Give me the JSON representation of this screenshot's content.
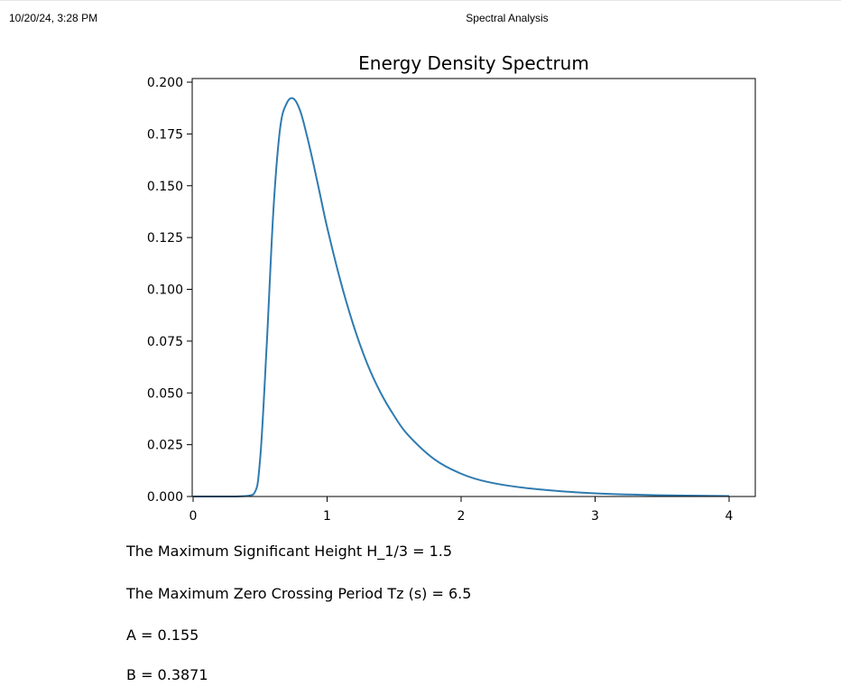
{
  "header": {
    "datetime": "10/20/24, 3:28 PM",
    "page_title": "Spectral Analysis"
  },
  "chart_data": {
    "type": "line",
    "title": "Energy Density Spectrum",
    "xlabel": "",
    "ylabel": "",
    "xlim": [
      0,
      4
    ],
    "ylim": [
      0,
      0.2
    ],
    "x_ticks": [
      "0",
      "1",
      "2",
      "3",
      "4"
    ],
    "y_ticks": [
      "0.000",
      "0.025",
      "0.050",
      "0.075",
      "0.100",
      "0.125",
      "0.150",
      "0.175",
      "0.200"
    ],
    "grid": false,
    "line_color": "#2f7bb0",
    "series": [
      {
        "x": [
          0,
          0.3,
          0.45,
          0.5,
          0.55,
          0.6,
          0.65,
          0.7,
          0.75,
          0.8,
          0.85,
          0.9,
          0.95,
          1.0,
          1.1,
          1.2,
          1.3,
          1.4,
          1.5,
          1.6,
          1.8,
          2.0,
          2.2,
          2.5,
          3.0,
          3.5,
          4.0
        ],
        "y": [
          0,
          0,
          0.001,
          0.018,
          0.074,
          0.139,
          0.178,
          0.19,
          0.192,
          0.186,
          0.174,
          0.16,
          0.145,
          0.13,
          0.104,
          0.082,
          0.064,
          0.05,
          0.039,
          0.03,
          0.018,
          0.011,
          0.007,
          0.004,
          0.0015,
          0.0006,
          0.0002
        ]
      }
    ]
  },
  "results": [
    "The Maximum Significant Height H_1/3 = 1.5",
    "The Maximum Zero Crossing Period Tz (s) = 6.5",
    "A = 0.155",
    "B = 0.3871"
  ]
}
